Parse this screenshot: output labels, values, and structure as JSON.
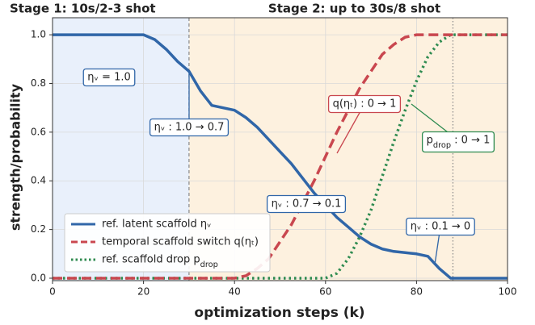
{
  "chart_data": {
    "type": "line",
    "xlabel": "optimization steps (k)",
    "ylabel": "strength/probability",
    "x": [
      0,
      2.5,
      5,
      7.5,
      10,
      12.5,
      15,
      17.5,
      20,
      22.5,
      25,
      27.5,
      30,
      32.5,
      35,
      37.5,
      40,
      42.5,
      45,
      47.5,
      50,
      52.5,
      55,
      57.5,
      60,
      62.5,
      65,
      67.5,
      70,
      72.5,
      75,
      77.5,
      80,
      82.5,
      85,
      87.5,
      90,
      92.5,
      95,
      97.5,
      100
    ],
    "series": [
      {
        "name": "ref. latent scaffold ηᵥ",
        "color": "#3066a8",
        "style": "solid",
        "values": [
          1,
          1,
          1,
          1,
          1,
          1,
          1,
          1,
          1,
          0.98,
          0.94,
          0.89,
          0.85,
          0.77,
          0.71,
          0.7,
          0.69,
          0.66,
          0.62,
          0.57,
          0.52,
          0.47,
          0.41,
          0.35,
          0.3,
          0.25,
          0.21,
          0.17,
          0.14,
          0.12,
          0.11,
          0.105,
          0.1,
          0.09,
          0.04,
          0,
          0,
          0,
          0,
          0,
          0
        ]
      },
      {
        "name": "temporal scaffold switch q(ηₜ)",
        "color": "#c9474f",
        "style": "dashed",
        "values": [
          0,
          0,
          0,
          0,
          0,
          0,
          0,
          0,
          0,
          0,
          0,
          0,
          0,
          0,
          0,
          0,
          0,
          0.01,
          0.04,
          0.08,
          0.15,
          0.22,
          0.31,
          0.4,
          0.5,
          0.6,
          0.69,
          0.78,
          0.85,
          0.92,
          0.96,
          0.99,
          1,
          1,
          1,
          1,
          1,
          1,
          1,
          1,
          1
        ]
      },
      {
        "name": "ref. scaffold drop p_drop",
        "color": "#2e8b50",
        "style": "dotted",
        "values": [
          0,
          0,
          0,
          0,
          0,
          0,
          0,
          0,
          0,
          0,
          0,
          0,
          0,
          0,
          0,
          0,
          0,
          0,
          0,
          0,
          0,
          0,
          0,
          0,
          0,
          0.02,
          0.08,
          0.17,
          0.28,
          0.42,
          0.56,
          0.69,
          0.81,
          0.91,
          0.97,
          1,
          1,
          1,
          1,
          1,
          1
        ]
      }
    ],
    "xlim": [
      0,
      100
    ],
    "ylim": [
      -0.01,
      1.07
    ],
    "xticks": [
      0,
      20,
      40,
      60,
      80,
      100
    ],
    "yticks": [
      {
        "value": 0,
        "label": "0.0"
      },
      0.2,
      0.4,
      0.6,
      0.8,
      {
        "value": 1,
        "label": "1.0"
      }
    ],
    "grid": true,
    "legend": "lower left",
    "regions": [
      {
        "label": "Stage 1: 10s/2-3 shot",
        "start": 0,
        "end": 30,
        "color": "#e9f0fb",
        "text_color": "#2f5f9e"
      },
      {
        "label": "Stage 2: up to 30s/8 shot",
        "start": 30,
        "end": 100,
        "color": "#fdf1df",
        "text_color": "#c8702a"
      }
    ],
    "vlines": [
      {
        "x": 30,
        "style": "dashed"
      },
      {
        "x": 88,
        "style": "dotted"
      }
    ],
    "annotations": [
      {
        "text": "ηᵥ = 1.0",
        "color": "#3066a8"
      },
      {
        "text": "ηᵥ : 1.0 → 0.7",
        "color": "#3066a8"
      },
      {
        "text": "q(ηₜ) : 0 → 1",
        "color": "#c9474f"
      },
      {
        "text": "p_drop : 0 → 1",
        "color": "#2e8b50"
      },
      {
        "text": "ηᵥ : 0.7 → 0.1",
        "color": "#3066a8"
      },
      {
        "text": "ηᵥ : 0.1 → 0",
        "color": "#3066a8"
      }
    ]
  }
}
